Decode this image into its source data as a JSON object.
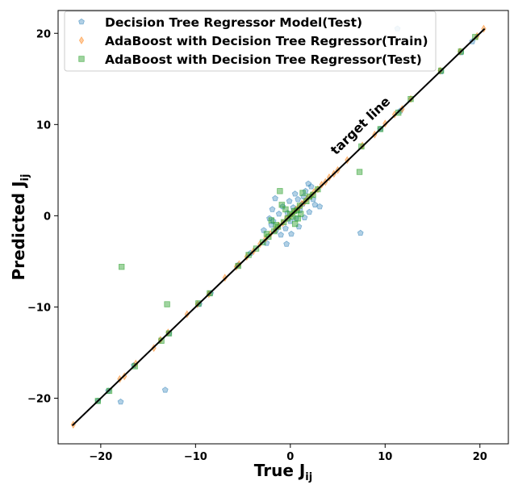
{
  "chart_data": {
    "type": "scatter",
    "xlabel": {
      "main": "True J",
      "sub": "ij"
    },
    "ylabel": {
      "main": "Predicted J",
      "sub": "ij"
    },
    "xlim": [
      -24.5,
      23.0
    ],
    "ylim": [
      -25.0,
      22.5
    ],
    "xticks": [
      -20,
      -10,
      0,
      10,
      20
    ],
    "yticks": [
      -20,
      -10,
      0,
      10,
      20
    ],
    "tick_labels": [
      "−20",
      "−10",
      "0",
      "10",
      "20"
    ],
    "grid": false,
    "legend_position": "top-left",
    "annotation": {
      "text": "target line",
      "x": 4.8,
      "y": 6.6
    },
    "target_line": {
      "x": [
        -23,
        20.5
      ],
      "y": [
        -23,
        20.5
      ],
      "color": "#000000"
    },
    "series": [
      {
        "name": "Decision Tree Regressor Model(Test)",
        "marker": "pentagon",
        "color": "#1f77b4",
        "alpha": 0.35,
        "points": [
          [
            -17.9,
            -20.4
          ],
          [
            -13.2,
            -19.1
          ],
          [
            -20.3,
            -20.3
          ],
          [
            -19.2,
            -19.2
          ],
          [
            -16.5,
            -16.4
          ],
          [
            -12.8,
            -12.9
          ],
          [
            -9.6,
            -9.7
          ],
          [
            -8.4,
            -8.5
          ],
          [
            -5.5,
            -5.4
          ],
          [
            -4.2,
            -4.1
          ],
          [
            -2.5,
            -3.0
          ],
          [
            -2.0,
            -1.0
          ],
          [
            -1.8,
            -0.6
          ],
          [
            -1.5,
            -1.6
          ],
          [
            -1.2,
            0.2
          ],
          [
            -1.0,
            -2.1
          ],
          [
            -0.8,
            1.0
          ],
          [
            -0.5,
            -1.4
          ],
          [
            -0.3,
            0.3
          ],
          [
            -0.1,
            1.6
          ],
          [
            0.0,
            -0.6
          ],
          [
            0.3,
            0.9
          ],
          [
            0.6,
            -0.3
          ],
          [
            0.8,
            1.8
          ],
          [
            1.0,
            0.6
          ],
          [
            1.3,
            1.3
          ],
          [
            1.5,
            -0.2
          ],
          [
            1.6,
            2.7
          ],
          [
            1.9,
            3.5
          ],
          [
            2.0,
            0.4
          ],
          [
            2.4,
            1.8
          ],
          [
            2.6,
            1.2
          ],
          [
            3.1,
            1.0
          ],
          [
            -2.8,
            -1.6
          ],
          [
            -2.2,
            -0.3
          ],
          [
            0.1,
            -2.0
          ],
          [
            -0.4,
            -3.1
          ],
          [
            -1.6,
            1.9
          ],
          [
            0.5,
            2.4
          ],
          [
            2.2,
            3.2
          ],
          [
            7.4,
            -1.9
          ],
          [
            11.3,
            20.5
          ],
          [
            9.5,
            9.5
          ],
          [
            11.6,
            11.5
          ],
          [
            15.9,
            15.8
          ],
          [
            18.0,
            17.9
          ],
          [
            19.2,
            19.1
          ],
          [
            -1.9,
            0.7
          ],
          [
            0.9,
            -1.2
          ],
          [
            1.4,
            2.1
          ]
        ]
      },
      {
        "name": "AdaBoost with Decision Tree Regressor(Train)",
        "marker": "thin_diamond",
        "color": "#ff7f0e",
        "alpha": 0.4,
        "points": [
          [
            -22.9,
            -22.9
          ],
          [
            -18.0,
            -17.9
          ],
          [
            -17.5,
            -17.6
          ],
          [
            -16.3,
            -16.2
          ],
          [
            -14.4,
            -14.5
          ],
          [
            -13.7,
            -13.6
          ],
          [
            -12.9,
            -12.8
          ],
          [
            -10.9,
            -10.8
          ],
          [
            -9.8,
            -9.7
          ],
          [
            -8.6,
            -8.6
          ],
          [
            -6.9,
            -6.8
          ],
          [
            -5.7,
            -5.6
          ],
          [
            -5.4,
            -5.3
          ],
          [
            -4.6,
            -4.5
          ],
          [
            -3.9,
            -3.9
          ],
          [
            -3.2,
            -3.1
          ],
          [
            -2.6,
            -2.5
          ],
          [
            -2.1,
            -2.0
          ],
          [
            -1.6,
            -1.5
          ],
          [
            -1.2,
            -1.1
          ],
          [
            -0.8,
            -0.8
          ],
          [
            -0.4,
            -0.3
          ],
          [
            0.0,
            0.0
          ],
          [
            0.3,
            0.3
          ],
          [
            0.6,
            0.7
          ],
          [
            0.9,
            0.9
          ],
          [
            1.2,
            1.3
          ],
          [
            1.5,
            1.5
          ],
          [
            1.8,
            1.9
          ],
          [
            2.2,
            2.2
          ],
          [
            2.5,
            2.6
          ],
          [
            2.9,
            2.9
          ],
          [
            3.3,
            3.4
          ],
          [
            3.7,
            3.7
          ],
          [
            4.1,
            4.2
          ],
          [
            4.6,
            4.6
          ],
          [
            5.0,
            5.0
          ],
          [
            6.0,
            6.1
          ],
          [
            7.6,
            7.7
          ],
          [
            8.9,
            8.9
          ],
          [
            10.0,
            10.1
          ],
          [
            11.0,
            11.1
          ],
          [
            11.8,
            11.7
          ],
          [
            12.7,
            12.8
          ],
          [
            15.8,
            15.9
          ],
          [
            17.9,
            18.0
          ],
          [
            19.7,
            19.7
          ],
          [
            20.4,
            20.5
          ]
        ]
      },
      {
        "name": "AdaBoost with Decision Tree Regressor(Test)",
        "marker": "square",
        "color": "#2ca02c",
        "alpha": 0.45,
        "points": [
          [
            -20.3,
            -20.3
          ],
          [
            -19.1,
            -19.2
          ],
          [
            -17.8,
            -5.6
          ],
          [
            -16.4,
            -16.5
          ],
          [
            -13.6,
            -13.7
          ],
          [
            -13.0,
            -9.7
          ],
          [
            -12.8,
            -12.9
          ],
          [
            -9.7,
            -9.6
          ],
          [
            -8.5,
            -8.5
          ],
          [
            -5.5,
            -5.5
          ],
          [
            -4.4,
            -4.3
          ],
          [
            -3.6,
            -3.6
          ],
          [
            -2.9,
            -2.9
          ],
          [
            -2.3,
            -2.3
          ],
          [
            -1.7,
            -1.7
          ],
          [
            -1.1,
            2.7
          ],
          [
            -1.3,
            -1.2
          ],
          [
            -0.7,
            -0.7
          ],
          [
            -0.3,
            -0.3
          ],
          [
            0.0,
            0.2
          ],
          [
            0.2,
            -0.1
          ],
          [
            0.4,
            0.5
          ],
          [
            0.7,
            0.6
          ],
          [
            1.0,
            1.1
          ],
          [
            1.3,
            2.5
          ],
          [
            1.7,
            1.6
          ],
          [
            2.0,
            2.1
          ],
          [
            2.4,
            2.3
          ],
          [
            -2.0,
            -0.5
          ],
          [
            -0.9,
            1.2
          ],
          [
            0.5,
            -0.9
          ],
          [
            1.1,
            0.2
          ],
          [
            -2.5,
            -2.0
          ],
          [
            2.9,
            2.9
          ],
          [
            7.3,
            4.8
          ],
          [
            7.5,
            7.6
          ],
          [
            9.5,
            9.5
          ],
          [
            11.4,
            11.3
          ],
          [
            12.7,
            12.8
          ],
          [
            15.9,
            15.9
          ],
          [
            18.0,
            18.0
          ],
          [
            19.5,
            19.6
          ],
          [
            -0.5,
            0.7
          ],
          [
            0.8,
            -0.3
          ],
          [
            -1.5,
            -1.0
          ]
        ]
      }
    ]
  }
}
